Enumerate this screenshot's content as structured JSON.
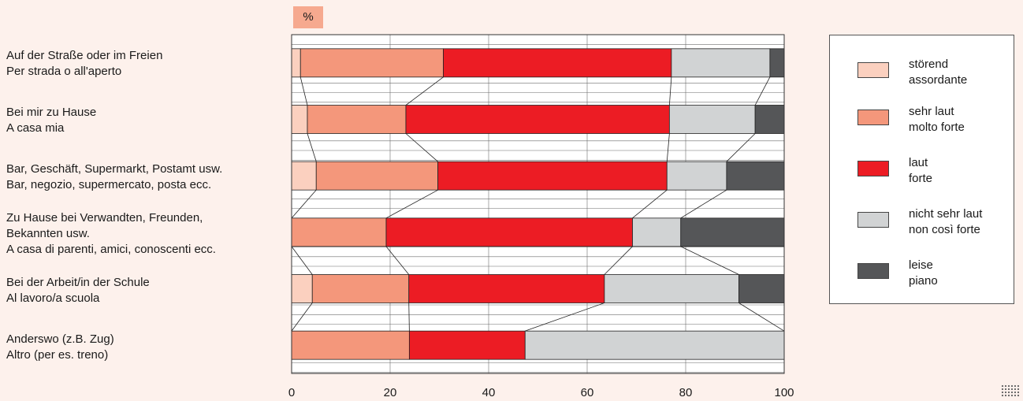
{
  "chart_data": {
    "type": "bar",
    "stacked": true,
    "orientation": "horizontal",
    "unit_label": "%",
    "xlim": [
      0,
      100
    ],
    "x_ticks": [
      "0",
      "20",
      "40",
      "60",
      "80",
      "100"
    ],
    "connector_lines": true,
    "categories": [
      "Auf der Straße oder im Freien\nPer strada o all'aperto",
      "Bei mir zu Hause\nA casa mia",
      "Bar, Geschäft, Supermarkt, Postamt usw.\nBar, negozio, supermercato, posta ecc.",
      "Zu Hause bei Verwandten, Freunden,\nBekannten usw.\nA casa di parenti, amici, conoscenti ecc.",
      "Bei der Arbeit/in der Schule\nAl lavoro/a scuola",
      "Anderswo (z.B. Zug)\nAltro (per es. treno)"
    ],
    "series": [
      {
        "name": "störend\nassordante",
        "color": "#fbd0bf",
        "values": [
          1.8,
          3.2,
          5.0,
          0.0,
          4.2,
          0.0
        ]
      },
      {
        "name": "sehr laut\nmolto forte",
        "color": "#f4977b",
        "values": [
          29.0,
          20.0,
          24.7,
          19.2,
          19.6,
          23.9
        ]
      },
      {
        "name": "laut\nforte",
        "color": "#ec1c24",
        "values": [
          46.3,
          53.5,
          46.5,
          50.0,
          39.7,
          23.5
        ]
      },
      {
        "name": "nicht sehr laut\nnon così forte",
        "color": "#d1d3d4",
        "values": [
          20.0,
          17.4,
          12.1,
          9.8,
          27.3,
          52.6
        ]
      },
      {
        "name": "leise\npiano",
        "color": "#555658",
        "values": [
          2.9,
          5.9,
          11.7,
          21.0,
          9.2,
          0.0
        ]
      }
    ]
  }
}
